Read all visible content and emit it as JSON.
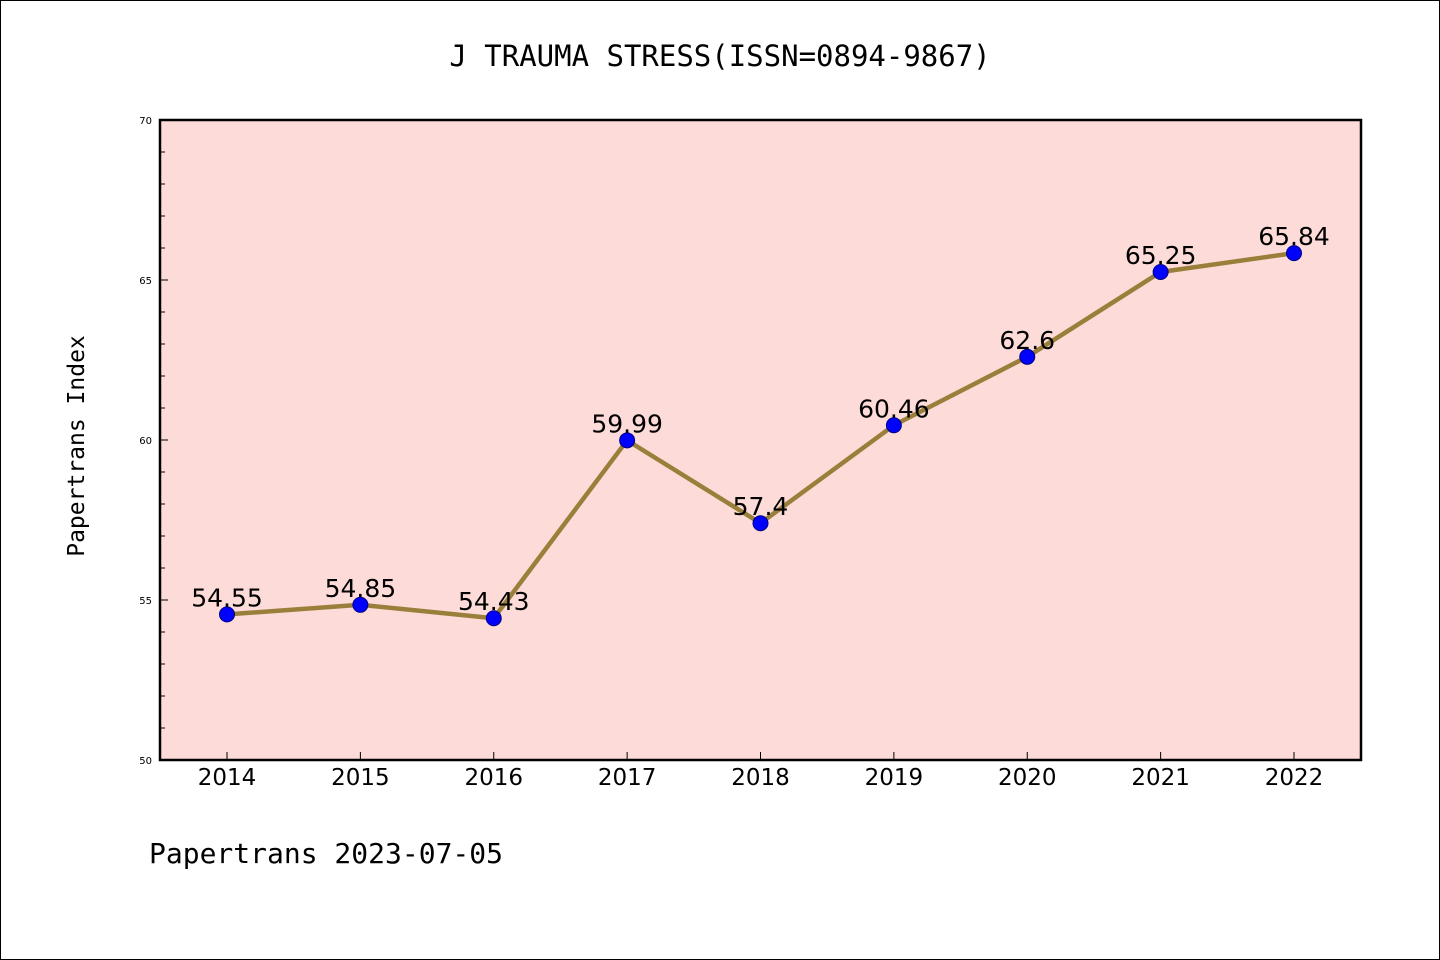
{
  "chart_data": {
    "type": "line",
    "title": "J TRAUMA STRESS(ISSN=0894-9867)",
    "xlabel": "",
    "ylabel": "Papertrans Index",
    "footer": "Papertrans 2023-07-05",
    "categories": [
      "2014",
      "2015",
      "2016",
      "2017",
      "2018",
      "2019",
      "2020",
      "2021",
      "2022"
    ],
    "series": [
      {
        "values": [
          54.55,
          54.85,
          54.43,
          59.99,
          57.4,
          60.46,
          62.6,
          65.25,
          65.84
        ],
        "labels": [
          "54.55",
          "54.85",
          "54.43",
          "59.99",
          "57.4",
          "60.46",
          "62.6",
          "65.25",
          "65.84"
        ]
      }
    ],
    "ylim": [
      50,
      70
    ],
    "yticks": [
      50,
      55,
      60,
      65,
      70
    ],
    "grid": false,
    "colors": {
      "plot_background": "#fddbd8",
      "line": "#9a7f3a",
      "marker": "#0000ff",
      "marker_edge": "#000080"
    }
  }
}
